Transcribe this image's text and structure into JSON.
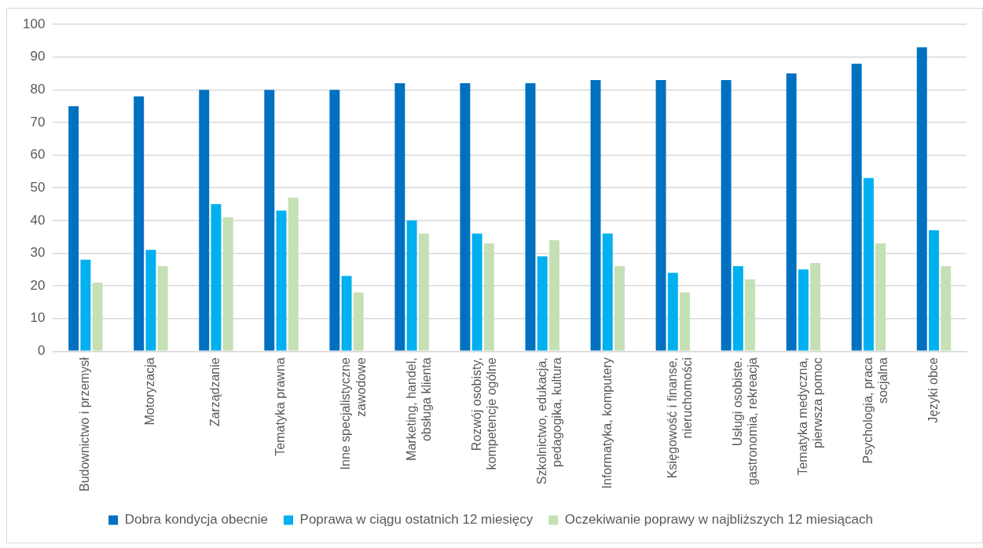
{
  "chart_data": {
    "type": "bar",
    "categories": [
      "Budownictwo i przemysł",
      "Motoryzacja",
      "Zarządzanie",
      "Tematyka prawna",
      "Inne specjalistyczne zawodowe",
      "Marketing, handel, obsługa klienta",
      "Rozwój osobisty, kompetencje ogólne",
      "Szkolnictwo, edukacja, pedagogika, kultura",
      "Informatyka, komputery",
      "Księgowość i finanse, nieruchomości",
      "Usługi osobiste. gastronomia, rekreacja",
      "Tematyka medyczna, pierwsza pomoc",
      "Psychologia, praca socjalna",
      "Języki obce"
    ],
    "series": [
      {
        "name": "Dobra kondycja obecnie",
        "color": "#0070c0",
        "values": [
          75,
          78,
          80,
          80,
          80,
          82,
          82,
          82,
          83,
          83,
          83,
          85,
          88,
          93
        ]
      },
      {
        "name": "Poprawa w ciągu ostatnich 12 miesięcy",
        "color": "#00b0f0",
        "values": [
          28,
          31,
          45,
          43,
          23,
          40,
          36,
          29,
          36,
          24,
          26,
          25,
          53,
          37
        ]
      },
      {
        "name": "Oczekiwanie poprawy w najbliższych 12 miesiącach",
        "color": "#c5e0b4",
        "values": [
          21,
          26,
          41,
          47,
          18,
          36,
          33,
          34,
          26,
          18,
          22,
          27,
          33,
          26
        ]
      }
    ],
    "ylim": [
      0,
      100
    ],
    "yticks": [
      0,
      10,
      20,
      30,
      40,
      50,
      60,
      70,
      80,
      90,
      100
    ],
    "grid": "y",
    "legend": "bottom"
  }
}
